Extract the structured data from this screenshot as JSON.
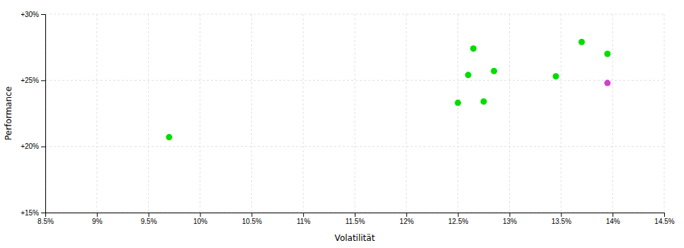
{
  "chart_data": {
    "type": "scatter",
    "xlabel": "Volatilität",
    "ylabel": "Performance",
    "xlim": [
      0.085,
      0.145
    ],
    "ylim": [
      0.15,
      0.3
    ],
    "xticks": [
      {
        "value": 0.085,
        "label": "8.5%"
      },
      {
        "value": 0.09,
        "label": "9%"
      },
      {
        "value": 0.095,
        "label": "9.5%"
      },
      {
        "value": 0.1,
        "label": "10%"
      },
      {
        "value": 0.105,
        "label": "10.5%"
      },
      {
        "value": 0.11,
        "label": "11%"
      },
      {
        "value": 0.115,
        "label": "11.5%"
      },
      {
        "value": 0.12,
        "label": "12%"
      },
      {
        "value": 0.125,
        "label": "12.5%"
      },
      {
        "value": 0.13,
        "label": "13%"
      },
      {
        "value": 0.135,
        "label": "13.5%"
      },
      {
        "value": 0.14,
        "label": "14%"
      },
      {
        "value": 0.145,
        "label": "14.5%"
      }
    ],
    "yticks": [
      {
        "value": 0.15,
        "label": "+15%"
      },
      {
        "value": 0.2,
        "label": "+20%"
      },
      {
        "value": 0.25,
        "label": "+25%"
      },
      {
        "value": 0.3,
        "label": "+30%"
      }
    ],
    "grid": true,
    "series": [
      {
        "color": "#00dd00",
        "x": [
          0.097,
          0.1265,
          0.126,
          0.1285,
          0.125,
          0.1275,
          0.1345,
          0.137,
          0.1395
        ],
        "values": [
          0.207,
          0.274,
          0.254,
          0.257,
          0.233,
          0.234,
          0.253,
          0.279,
          0.27
        ]
      },
      {
        "color": "#cc44cc",
        "x": [
          0.1395
        ],
        "values": [
          0.248
        ]
      }
    ]
  }
}
